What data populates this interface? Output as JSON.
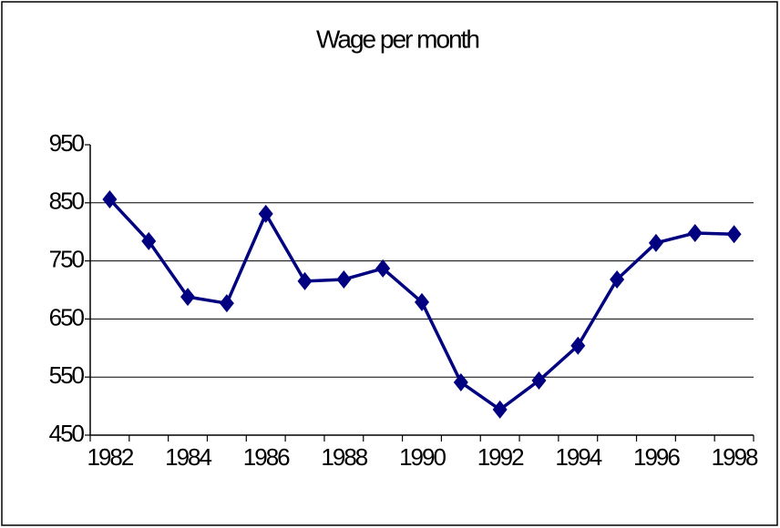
{
  "chart_data": {
    "type": "line",
    "title": "Wage per month",
    "categories": [
      "1982",
      null,
      "1984",
      null,
      "1986",
      null,
      "1988",
      null,
      "1990",
      null,
      "1992",
      null,
      "1994",
      null,
      "1996",
      null,
      "1998"
    ],
    "series": [
      {
        "name": "Wage per month",
        "color": "#000080",
        "values": [
          856,
          784,
          688,
          677,
          831,
          715,
          718,
          737,
          679,
          541,
          494,
          544,
          604,
          718,
          781,
          798,
          796
        ]
      }
    ],
    "ylim": [
      450,
      950
    ],
    "yticks": [
      450,
      550,
      650,
      750,
      850,
      950
    ],
    "grid": true,
    "legend": false
  }
}
